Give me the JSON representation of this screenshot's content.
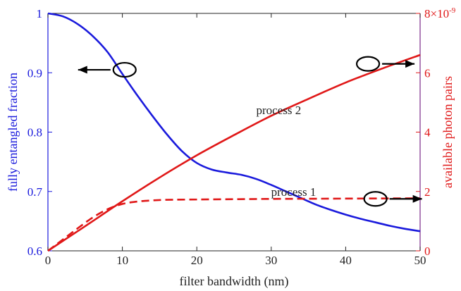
{
  "colors": {
    "left_axis": "#1a1adc",
    "right_axis": "#e01818",
    "text": "#222222",
    "annotation": "#000000",
    "right_spine": "#7a2a8a"
  },
  "chart_data": {
    "type": "line",
    "xlabel": "filter bandwidth (nm)",
    "xlim": [
      0,
      50
    ],
    "xticks": [
      0,
      10,
      20,
      30,
      40,
      50
    ],
    "ylabel_left": "fully entangled fraction",
    "ylim_left": [
      0.6,
      1.0
    ],
    "yticks_left": [
      0.6,
      0.7,
      0.8,
      0.9,
      1.0
    ],
    "ytick_labels_left": [
      "0.6",
      "0.7",
      "0.8",
      "0.9",
      "1"
    ],
    "ylabel_right": "available photon pairs",
    "ylim_right": [
      0,
      8e-09
    ],
    "yticks_right": [
      0,
      2e-09,
      4e-09,
      6e-09,
      8e-09
    ],
    "ytick_labels_right": [
      "0",
      "2",
      "4",
      "6",
      "8×10"
    ],
    "ytick_right_top_exponent": "-9",
    "grid": false,
    "series": [
      {
        "axis": "left",
        "color": "#1a1adc",
        "dashed": false,
        "x": [
          0,
          2,
          4,
          6,
          8,
          10,
          12,
          14,
          16,
          18,
          20,
          22,
          24,
          26,
          28,
          30,
          32,
          34,
          36,
          38,
          40,
          42,
          44,
          46,
          48,
          50
        ],
        "y": [
          1.0,
          0.995,
          0.982,
          0.962,
          0.935,
          0.898,
          0.862,
          0.828,
          0.796,
          0.768,
          0.748,
          0.737,
          0.732,
          0.728,
          0.721,
          0.711,
          0.7,
          0.689,
          0.678,
          0.669,
          0.661,
          0.654,
          0.648,
          0.642,
          0.637,
          0.633
        ]
      },
      {
        "axis": "right",
        "color": "#e01818",
        "dashed": false,
        "x": [
          0,
          5,
          10,
          15,
          20,
          25,
          30,
          35,
          40,
          45,
          50
        ],
        "y": [
          0,
          8.3e-10,
          1.67e-09,
          2.47e-09,
          3.22e-09,
          3.9e-09,
          4.55e-09,
          5.12e-09,
          5.67e-09,
          6.15e-09,
          6.6e-09
        ]
      },
      {
        "axis": "right",
        "color": "#e01818",
        "dashed": true,
        "x": [
          0,
          2,
          4,
          6,
          8,
          10,
          12,
          14,
          16,
          20,
          25,
          30,
          35,
          40,
          45,
          50
        ],
        "y": [
          0,
          3.8e-10,
          7.6e-10,
          1.12e-09,
          1.4e-09,
          1.58e-09,
          1.66e-09,
          1.7e-09,
          1.72e-09,
          1.73e-09,
          1.74e-09,
          1.75e-09,
          1.755e-09,
          1.76e-09,
          1.765e-09,
          1.77e-09
        ]
      }
    ],
    "annotations": [
      {
        "text": "process 2",
        "x": 31,
        "y_right": 4.75e-09
      },
      {
        "text": "process 1",
        "x": 33,
        "y_right": 2e-09
      }
    ],
    "markers": [
      {
        "shape": "ellipse",
        "x": 10.3,
        "y_left": 0.905,
        "arrow": "left"
      },
      {
        "shape": "ellipse",
        "x": 43,
        "y_right": 6.3e-09,
        "arrow": "right"
      },
      {
        "shape": "ellipse",
        "x": 44,
        "y_right": 1.75e-09,
        "arrow": "right"
      }
    ]
  }
}
